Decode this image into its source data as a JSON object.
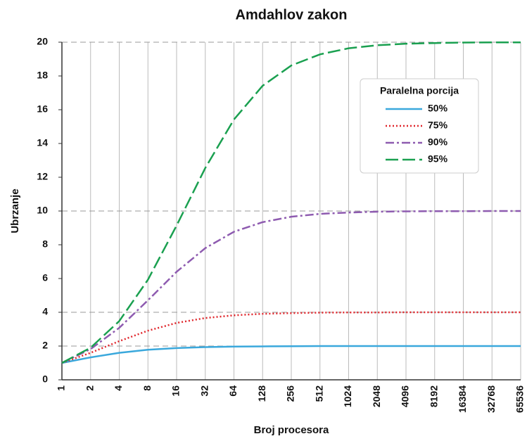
{
  "chart_data": {
    "type": "line",
    "title": "Amdahlov zakon",
    "x_label": "Broj procesora",
    "y_label": "Ubrzanje",
    "categories": [
      "1",
      "2",
      "4",
      "8",
      "16",
      "32",
      "64",
      "128",
      "256",
      "512",
      "1024",
      "2048",
      "4096",
      "8192",
      "16384",
      "32768",
      "65536"
    ],
    "legend_title": "Paralelna porcija",
    "legend_position": "upper right",
    "series": [
      {
        "name": "50%",
        "color": "#3aa8dc",
        "dash": "solid",
        "values": [
          1,
          1.33,
          1.6,
          1.78,
          1.88,
          1.94,
          1.97,
          1.98,
          1.99,
          2,
          2,
          2,
          2,
          2,
          2,
          2,
          2
        ]
      },
      {
        "name": "75%",
        "color": "#e0262c",
        "dash": "dotted",
        "values": [
          1,
          1.6,
          2.29,
          2.91,
          3.37,
          3.66,
          3.82,
          3.91,
          3.95,
          3.98,
          3.99,
          3.99,
          4,
          4,
          4,
          4,
          4
        ]
      },
      {
        "name": "90%",
        "color": "#8e5bb0",
        "dash": "dashdot",
        "values": [
          1,
          1.82,
          3.08,
          4.71,
          6.4,
          7.8,
          8.77,
          9.34,
          9.66,
          9.83,
          9.91,
          9.96,
          9.98,
          9.99,
          9.99,
          10,
          10
        ]
      },
      {
        "name": "95%",
        "color": "#1aa050",
        "dash": "longdash",
        "values": [
          1,
          1.9,
          3.48,
          5.93,
          9.14,
          12.55,
          15.42,
          17.42,
          18.62,
          19.28,
          19.64,
          19.82,
          19.91,
          19.95,
          19.98,
          19.99,
          19.99
        ]
      }
    ],
    "ylim": [
      0,
      20
    ],
    "yticks": [
      0,
      2,
      4,
      6,
      8,
      10,
      12,
      14,
      16,
      18,
      20
    ],
    "grid": true,
    "asymptotes": [
      2,
      4,
      10,
      20
    ]
  }
}
